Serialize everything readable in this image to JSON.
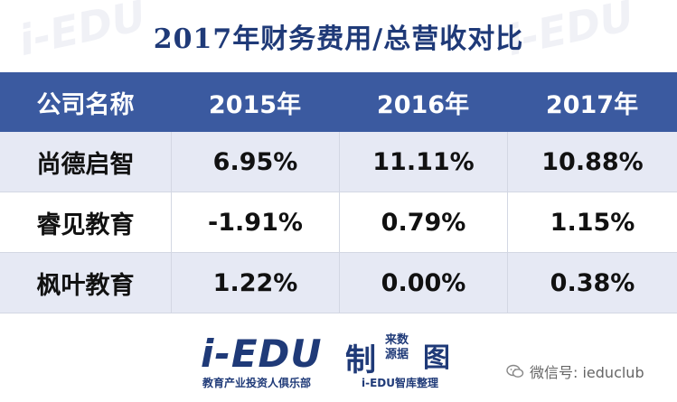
{
  "title": "2017年财务费用/总营收对比",
  "table": {
    "headers": [
      "公司名称",
      "2015年",
      "2016年",
      "2017年"
    ],
    "rows": [
      {
        "name": "尚德启智",
        "y2015": "6.95%",
        "y2016": "11.11%",
        "y2017": "10.88%"
      },
      {
        "name": "睿见教育",
        "y2015": "-1.91%",
        "y2016": "0.79%",
        "y2017": "1.15%"
      },
      {
        "name": "枫叶教育",
        "y2015": "1.22%",
        "y2016": "0.00%",
        "y2017": "0.38%"
      }
    ]
  },
  "footer": {
    "logo_main": "i-EDU",
    "logo_zhi": "制",
    "logo_small": "来数 源据",
    "logo_tu": "图",
    "logo_sub": "教育产业投资人俱乐部",
    "logo_sub2": "i-EDU智库整理",
    "wechat": "微信号: ieduclub"
  },
  "watermark_text": "i-EDU",
  "colors": {
    "title": "#1f3a78",
    "header_bg": "#3b5aa0",
    "alt_row_bg": "#e6e9f4"
  }
}
